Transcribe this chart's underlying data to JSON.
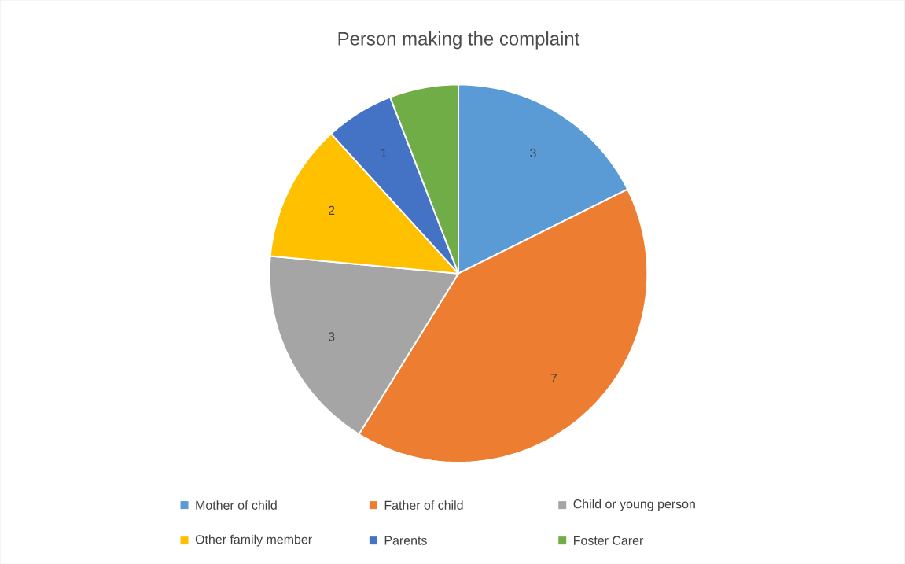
{
  "chart_data": {
    "type": "pie",
    "title": "Person making the complaint",
    "categories": [
      "Mother of child",
      "Father of child",
      "Child or young person",
      "Other family member",
      "Parents",
      "Foster Carer"
    ],
    "values": [
      3,
      7,
      3,
      2,
      1,
      1
    ],
    "colors": [
      "#5b9bd5",
      "#ed7d31",
      "#a5a5a5",
      "#ffc000",
      "#4472c4",
      "#70ad47"
    ],
    "value_labels": [
      "3",
      "7",
      "3",
      "2",
      "1",
      null
    ],
    "legend": "bottom"
  }
}
